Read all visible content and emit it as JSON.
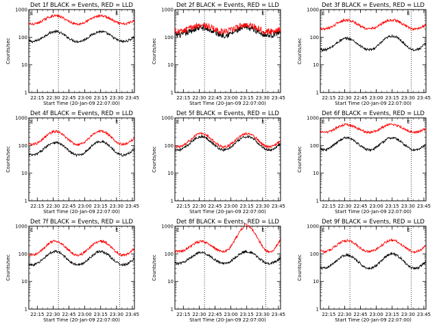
{
  "figure": {
    "background": "#ffffff",
    "events_color": "#000000",
    "lld_color": "#ff0000"
  },
  "chart_data": [
    {
      "type": "line",
      "title": "Det 1f BLACK = Events, RED = LLD",
      "xlabel": "Start Time (20-Jan-09 22:07:00)",
      "ylabel": "Counts/sec",
      "yscale": "log",
      "ylim": [
        1,
        1000
      ],
      "yticks": [
        "1",
        "10",
        "100",
        "1000"
      ],
      "xlim": [
        "22:07",
        "23:47"
      ],
      "xticks": [
        "22:15",
        "22:30",
        "22:45",
        "23:00",
        "23:15",
        "23:30",
        "23:45"
      ],
      "markers": [
        "22:35",
        "23:33"
      ],
      "annotations": [
        "E",
        "E"
      ],
      "series": [
        {
          "name": "BLACK = Events",
          "color": "#000000",
          "peaks_approx": {
            "22:32": 160,
            "23:15": 160
          },
          "trough_approx": {
            "22:55": 70
          }
        },
        {
          "name": "RED = LLD",
          "color": "#ff0000",
          "peaks_approx": {
            "22:32": 600,
            "23:15": 600
          },
          "trough_approx": {
            "22:55": 300
          }
        }
      ]
    },
    {
      "type": "line",
      "title": "Det 2f BLACK = Events, RED = LLD",
      "xlabel": "Start Time (20-Jan-09 22:07:00)",
      "ylabel": "Counts/sec",
      "yscale": "log",
      "ylim": [
        1,
        1000
      ],
      "yticks": [
        "1",
        "10",
        "100",
        "1000"
      ],
      "xlim": [
        "22:07",
        "23:47"
      ],
      "xticks": [
        "22:15",
        "22:30",
        "22:45",
        "23:00",
        "23:15",
        "23:30",
        "23:45"
      ],
      "markers": [
        "22:35",
        "23:33"
      ],
      "annotations": [
        "E",
        "E"
      ],
      "series": [
        {
          "name": "BLACK = Events",
          "color": "#000000",
          "peaks_approx": {
            "22:32": 220,
            "23:15": 220
          },
          "trough_approx": {
            "22:55": 120
          }
        },
        {
          "name": "RED = LLD",
          "color": "#ff0000",
          "peaks_approx": {
            "22:32": 280,
            "23:15": 280
          },
          "trough_approx": {
            "22:55": 160
          }
        }
      ]
    },
    {
      "type": "line",
      "title": "Det 3f BLACK = Events, RED = LLD",
      "xlabel": "Start Time (20-Jan-09 22:07:00)",
      "ylabel": "Counts/sec",
      "yscale": "log",
      "ylim": [
        1,
        1000
      ],
      "yticks": [
        "1",
        "10",
        "100",
        "1000"
      ],
      "xlim": [
        "22:07",
        "23:47"
      ],
      "xticks": [
        "22:15",
        "22:30",
        "22:45",
        "23:00",
        "23:15",
        "23:30",
        "23:45"
      ],
      "markers": [
        "22:35",
        "23:33"
      ],
      "annotations": [
        "E",
        "E"
      ],
      "series": [
        {
          "name": "BLACK = Events",
          "color": "#000000",
          "peaks_approx": {
            "22:32": 90,
            "23:15": 110
          },
          "trough_approx": {
            "22:55": 35
          }
        },
        {
          "name": "RED = LLD",
          "color": "#ff0000",
          "peaks_approx": {
            "22:32": 420,
            "23:15": 420
          },
          "trough_approx": {
            "22:55": 200
          }
        }
      ]
    },
    {
      "type": "line",
      "title": "Det 4f BLACK = Events, RED = LLD",
      "xlabel": "Start Time (20-Jan-09 22:07:00)",
      "ylabel": "Counts/sec",
      "yscale": "log",
      "ylim": [
        1,
        1000
      ],
      "yticks": [
        "1",
        "10",
        "100",
        "1000"
      ],
      "xlim": [
        "22:07",
        "23:47"
      ],
      "xticks": [
        "22:15",
        "22:30",
        "22:45",
        "23:00",
        "23:15",
        "23:30",
        "23:45"
      ],
      "markers": [
        "22:35",
        "23:33"
      ],
      "annotations": [
        "E",
        "E"
      ],
      "series": [
        {
          "name": "BLACK = Events",
          "color": "#000000",
          "peaks_approx": {
            "22:32": 130,
            "23:15": 140
          },
          "trough_approx": {
            "22:55": 45
          }
        },
        {
          "name": "RED = LLD",
          "color": "#ff0000",
          "peaks_approx": {
            "22:32": 320,
            "23:15": 330
          },
          "trough_approx": {
            "22:55": 110
          }
        }
      ]
    },
    {
      "type": "line",
      "title": "Det 5f BLACK = Events, RED = LLD",
      "xlabel": "Start Time (20-Jan-09 22:07:00)",
      "ylabel": "Counts/sec",
      "yscale": "log",
      "ylim": [
        1,
        1000
      ],
      "yticks": [
        "1",
        "10",
        "100",
        "1000"
      ],
      "xlim": [
        "22:07",
        "23:47"
      ],
      "xticks": [
        "22:15",
        "22:30",
        "22:45",
        "23:00",
        "23:15",
        "23:30",
        "23:45"
      ],
      "markers": [
        "22:35",
        "23:33"
      ],
      "annotations": [
        "E",
        "E"
      ],
      "series": [
        {
          "name": "BLACK = Events",
          "color": "#000000",
          "peaks_approx": {
            "22:32": 210,
            "23:15": 210
          },
          "trough_approx": {
            "22:55": 70
          }
        },
        {
          "name": "RED = LLD",
          "color": "#ff0000",
          "peaks_approx": {
            "22:32": 270,
            "23:15": 270
          },
          "trough_approx": {
            "22:55": 90
          }
        }
      ]
    },
    {
      "type": "line",
      "title": "Det 6f BLACK = Events, RED = LLD",
      "xlabel": "Start Time (20-Jan-09 22:07:00)",
      "ylabel": "Counts/sec",
      "yscale": "log",
      "ylim": [
        1,
        1000
      ],
      "yticks": [
        "1",
        "10",
        "100",
        "1000"
      ],
      "xlim": [
        "22:07",
        "23:47"
      ],
      "xticks": [
        "22:15",
        "22:30",
        "22:45",
        "23:00",
        "23:15",
        "23:30",
        "23:45"
      ],
      "markers": [
        "22:35",
        "23:33"
      ],
      "annotations": [
        "E",
        "E"
      ],
      "series": [
        {
          "name": "BLACK = Events",
          "color": "#000000",
          "peaks_approx": {
            "22:32": 190,
            "23:15": 190
          },
          "trough_approx": {
            "22:55": 70
          }
        },
        {
          "name": "RED = LLD",
          "color": "#ff0000",
          "peaks_approx": {
            "22:32": 560,
            "23:15": 580
          },
          "trough_approx": {
            "22:55": 300
          }
        }
      ]
    },
    {
      "type": "line",
      "title": "Det 7f BLACK = Events, RED = LLD",
      "xlabel": "Start Time (20-Jan-09 22:07:00)",
      "ylabel": "Counts/sec",
      "yscale": "log",
      "ylim": [
        1,
        1000
      ],
      "yticks": [
        "1",
        "10",
        "100",
        "1000"
      ],
      "xlim": [
        "22:07",
        "23:47"
      ],
      "xticks": [
        "22:15",
        "22:30",
        "22:45",
        "23:00",
        "23:15",
        "23:30",
        "23:45"
      ],
      "markers": [
        "22:35",
        "23:33"
      ],
      "annotations": [
        "E",
        "E"
      ],
      "series": [
        {
          "name": "BLACK = Events",
          "color": "#000000",
          "peaks_approx": {
            "22:32": 120,
            "23:15": 120
          },
          "trough_approx": {
            "22:55": 40
          }
        },
        {
          "name": "RED = LLD",
          "color": "#ff0000",
          "peaks_approx": {
            "22:32": 290,
            "23:15": 290
          },
          "trough_approx": {
            "22:55": 90
          }
        }
      ]
    },
    {
      "type": "line",
      "title": "Det 8f BLACK = Events, RED = LLD",
      "xlabel": "Start Time (20-Jan-09 22:07:00)",
      "ylabel": "Counts/sec",
      "yscale": "log",
      "ylim": [
        1,
        1000
      ],
      "yticks": [
        "1",
        "10",
        "100",
        "1000"
      ],
      "xlim": [
        "22:07",
        "23:47"
      ],
      "xticks": [
        "22:15",
        "22:30",
        "22:45",
        "23:00",
        "23:15",
        "23:30",
        "23:45"
      ],
      "markers": [
        "22:35",
        "23:33"
      ],
      "annotations": [
        "E",
        "E"
      ],
      "series": [
        {
          "name": "BLACK = Events",
          "color": "#000000",
          "peaks_approx": {
            "22:32": 110,
            "23:15": 120
          },
          "trough_approx": {
            "22:55": 45
          }
        },
        {
          "name": "RED = LLD",
          "color": "#ff0000",
          "peaks_approx": {
            "22:32": 280,
            "23:15": 1000
          },
          "trough_approx": {
            "22:55": 120
          }
        }
      ]
    },
    {
      "type": "line",
      "title": "Det 9f BLACK = Events, RED = LLD",
      "xlabel": "Start Time (20-Jan-09 22:07:00)",
      "ylabel": "Counts/sec",
      "yscale": "log",
      "ylim": [
        1,
        1000
      ],
      "yticks": [
        "1",
        "10",
        "100",
        "1000"
      ],
      "xlim": [
        "22:07",
        "23:47"
      ],
      "xticks": [
        "22:15",
        "22:30",
        "22:45",
        "23:00",
        "23:15",
        "23:30",
        "23:45"
      ],
      "markers": [
        "22:35",
        "23:33"
      ],
      "annotations": [
        "E",
        "E"
      ],
      "series": [
        {
          "name": "BLACK = Events",
          "color": "#000000",
          "peaks_approx": {
            "22:32": 90,
            "23:15": 100
          },
          "trough_approx": {
            "22:55": 30
          }
        },
        {
          "name": "RED = LLD",
          "color": "#ff0000",
          "peaks_approx": {
            "22:32": 300,
            "23:15": 310
          },
          "trough_approx": {
            "22:55": 120
          }
        }
      ]
    }
  ]
}
